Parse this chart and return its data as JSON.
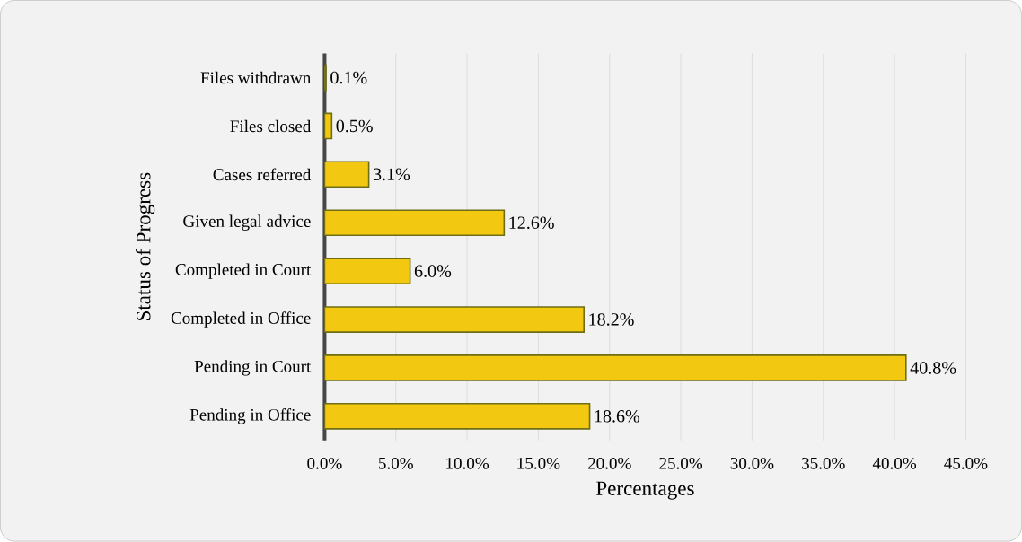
{
  "chart_data": {
    "type": "bar",
    "orientation": "horizontal",
    "xlabel": "Percentages",
    "ylabel": "Status of Progress",
    "categories": [
      "Files withdrawn",
      "Files closed",
      "Cases referred",
      "Given legal advice",
      "Completed in Court",
      "Completed in Office",
      "Pending in Court",
      "Pending in Office"
    ],
    "values": [
      0.1,
      0.5,
      3.1,
      12.6,
      6.0,
      18.2,
      40.8,
      18.6
    ],
    "value_labels": [
      "0.1%",
      "0.5%",
      "3.1%",
      "12.6%",
      "6.0%",
      "18.2%",
      "40.8%",
      "18.6%"
    ],
    "color": "#f2c811",
    "xlim": [
      0,
      45
    ],
    "xticks": [
      {
        "value": 0,
        "label": "0.0%"
      },
      {
        "value": 5,
        "label": "5.0%"
      },
      {
        "value": 10,
        "label": "10.0%"
      },
      {
        "value": 15,
        "label": "15.0%"
      },
      {
        "value": 20,
        "label": "20.0%"
      },
      {
        "value": 25,
        "label": "25.0%"
      },
      {
        "value": 30,
        "label": "30.0%"
      },
      {
        "value": 35,
        "label": "35.0%"
      },
      {
        "value": 40,
        "label": "40.0%"
      },
      {
        "value": 45,
        "label": "45.0%"
      }
    ],
    "grid": "x"
  }
}
